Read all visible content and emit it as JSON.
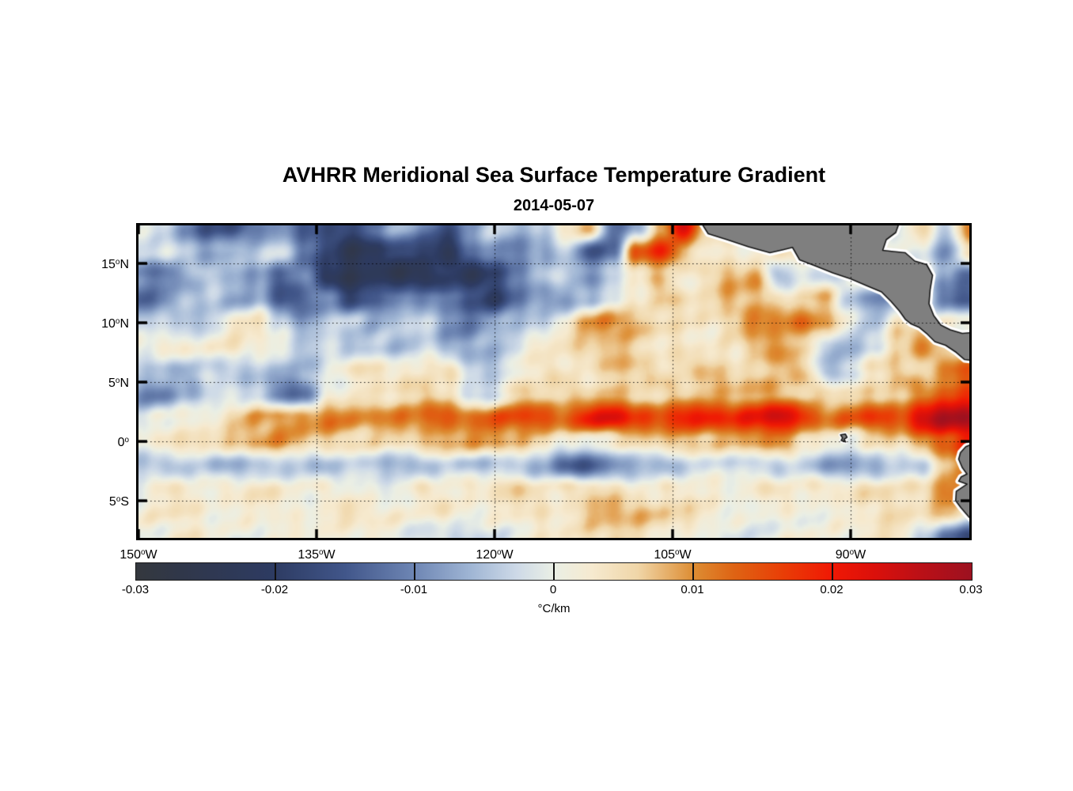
{
  "title": "AVHRR Meridional Sea Surface Temperature Gradient",
  "subtitle": "2014-05-07",
  "chart_data": {
    "type": "heatmap",
    "title": "AVHRR Meridional Sea Surface Temperature Gradient",
    "subtitle": "2014-05-07",
    "units": "°C/km",
    "extent": {
      "lon_min": -150,
      "lon_max": -80,
      "lat_min": -8.13,
      "lat_max": 18.2
    },
    "gridlines": {
      "lats": [
        15,
        10,
        5,
        0,
        -5
      ],
      "lons": [
        -135,
        -120,
        -105,
        -90
      ],
      "style": "dotted-black"
    },
    "y_ticks": [
      {
        "lat": 15,
        "num": "15",
        "sup": "o",
        "suffix": "N"
      },
      {
        "lat": 10,
        "num": "10",
        "sup": "o",
        "suffix": "N"
      },
      {
        "lat": 5,
        "num": "5",
        "sup": "o",
        "suffix": "N"
      },
      {
        "lat": 0,
        "num": "0",
        "sup": "o",
        "suffix": ""
      },
      {
        "lat": -5,
        "num": "5",
        "sup": "o",
        "suffix": "S"
      }
    ],
    "x_ticks": [
      {
        "lon": -150,
        "num": "150",
        "sup": "o",
        "suffix": "W"
      },
      {
        "lon": -135,
        "num": "135",
        "sup": "o",
        "suffix": "W"
      },
      {
        "lon": -120,
        "num": "120",
        "sup": "o",
        "suffix": "W"
      },
      {
        "lon": -105,
        "num": "105",
        "sup": "o",
        "suffix": "W"
      },
      {
        "lon": -90,
        "num": "90",
        "sup": "o",
        "suffix": "W"
      }
    ],
    "colorbar": {
      "min": -0.03,
      "max": 0.03,
      "unit": "°C/km",
      "tick_values": [
        -0.03,
        -0.02,
        -0.01,
        0,
        0.01,
        0.02,
        0.03
      ],
      "tick_labels": [
        "-0.03",
        "-0.02",
        "-0.01",
        "0",
        "0.01",
        "0.02",
        "0.03"
      ],
      "stops": [
        [
          0.0,
          "#34383e"
        ],
        [
          0.055,
          "#30374a"
        ],
        [
          0.165,
          "#2d3b62"
        ],
        [
          0.25,
          "#41568a"
        ],
        [
          0.333,
          "#6e86b4"
        ],
        [
          0.4,
          "#9fb5d4"
        ],
        [
          0.455,
          "#cdd9e7"
        ],
        [
          0.5,
          "#eaefe5"
        ],
        [
          0.545,
          "#f6ead0"
        ],
        [
          0.6,
          "#f0d6a8"
        ],
        [
          0.667,
          "#dd8d33"
        ],
        [
          0.715,
          "#de6414"
        ],
        [
          0.775,
          "#e93d06"
        ],
        [
          0.833,
          "#f01804"
        ],
        [
          0.885,
          "#da100b"
        ],
        [
          0.935,
          "#bd1016"
        ],
        [
          1.0,
          "#9c1120"
        ]
      ]
    },
    "grid": {
      "comment": "meridional SST gradient, milli-degC per km, rows north to south",
      "lon0": -150,
      "dlon": 2,
      "lat0": 18,
      "dlat": 2,
      "values_milli": [
        [
          -2,
          -4,
          -10,
          -16,
          -18,
          -12,
          -8,
          -14,
          -18,
          -16,
          -10,
          -6,
          -12,
          -16,
          -8,
          -4,
          -6,
          -2,
          4,
          8,
          -12,
          -8,
          6,
          22,
          6,
          5,
          4,
          3,
          2,
          2,
          2,
          0,
          -2,
          4,
          -4,
          14
        ],
        [
          -3,
          -2,
          -6,
          -8,
          -6,
          -4,
          -2,
          -10,
          -18,
          -24,
          -22,
          -16,
          -20,
          -22,
          -12,
          -8,
          -12,
          -8,
          -4,
          -16,
          -14,
          14,
          20,
          8,
          4,
          4,
          3,
          3,
          6,
          4,
          3,
          2,
          0,
          -2,
          -8,
          6
        ],
        [
          -10,
          -12,
          -8,
          -5,
          -4,
          -6,
          -14,
          -10,
          -20,
          -26,
          -24,
          -26,
          -22,
          -20,
          -24,
          -16,
          -10,
          -6,
          -4,
          -8,
          -4,
          2,
          8,
          4,
          4,
          8,
          10,
          -6,
          -4,
          -4,
          2,
          6,
          -3,
          4,
          -6,
          -14
        ],
        [
          -14,
          -12,
          -6,
          -4,
          -8,
          -6,
          -16,
          -12,
          -10,
          -18,
          -14,
          -8,
          -12,
          -10,
          -16,
          -20,
          -14,
          -8,
          -10,
          -6,
          -2,
          4,
          8,
          6,
          6,
          10,
          8,
          2,
          4,
          6,
          -6,
          -12,
          -6,
          2,
          -10,
          -14
        ],
        [
          -4,
          -3,
          -5,
          -2,
          3,
          4,
          -2,
          -8,
          -6,
          -4,
          -6,
          -4,
          -3,
          -8,
          -10,
          -6,
          -5,
          -3,
          2,
          8,
          10,
          8,
          4,
          3,
          5,
          8,
          12,
          10,
          14,
          8,
          -2,
          -6,
          6,
          3,
          2,
          3
        ],
        [
          1,
          2,
          0,
          2,
          3,
          2,
          0,
          -3,
          -2,
          -5,
          -4,
          -5,
          -3,
          -6,
          -7,
          -5,
          -2,
          3,
          4,
          5,
          6,
          5,
          4,
          4,
          4,
          5,
          10,
          9,
          6,
          -6,
          -8,
          -5,
          6,
          10,
          6,
          4
        ],
        [
          -3,
          -5,
          -8,
          -5,
          -3,
          -4,
          -6,
          -5,
          2,
          3,
          3,
          2,
          3,
          2,
          -4,
          -3,
          2,
          4,
          5,
          5,
          6,
          6,
          5,
          5,
          5,
          5,
          6,
          8,
          6,
          -4,
          -2,
          4,
          6,
          6,
          10,
          12
        ],
        [
          -8,
          -12,
          -8,
          -4,
          -3,
          -5,
          -12,
          -10,
          2,
          4,
          5,
          6,
          5,
          4,
          -5,
          -4,
          4,
          6,
          6,
          7,
          8,
          7,
          6,
          6,
          7,
          8,
          8,
          7,
          6,
          5,
          4,
          5,
          8,
          10,
          14,
          16
        ],
        [
          0,
          2,
          2,
          3,
          5,
          7,
          8,
          10,
          11,
          10,
          12,
          13,
          12,
          14,
          13,
          14,
          15,
          16,
          15,
          20,
          23,
          18,
          16,
          18,
          20,
          19,
          21,
          24,
          20,
          13,
          14,
          18,
          16,
          24,
          27,
          28
        ],
        [
          3,
          5,
          4,
          5,
          6,
          7,
          8,
          7,
          6,
          5,
          6,
          7,
          8,
          9,
          10,
          9,
          6,
          3,
          1,
          0,
          2,
          6,
          9,
          8,
          7,
          8,
          10,
          9,
          4,
          2,
          0,
          4,
          6,
          10,
          14,
          18
        ],
        [
          -3,
          -4,
          -4,
          -5,
          -5,
          -6,
          -5,
          -5,
          -4,
          -4,
          -5,
          -6,
          -5,
          -5,
          -5,
          -4,
          -5,
          -8,
          -12,
          -14,
          -10,
          -6,
          -5,
          -4,
          -4,
          -3,
          -4,
          -5,
          -4,
          -6,
          -7,
          -6,
          -3,
          -2,
          6,
          8
        ],
        [
          1,
          2,
          2,
          1,
          2,
          2,
          3,
          3,
          3,
          2,
          2,
          1,
          2,
          1,
          2,
          3,
          4,
          4,
          5,
          6,
          5,
          4,
          3,
          2,
          2,
          1,
          2,
          2,
          3,
          4,
          3,
          5,
          6,
          4,
          12,
          8
        ],
        [
          3,
          4,
          3,
          2,
          2,
          1,
          2,
          2,
          3,
          4,
          3,
          2,
          1,
          2,
          2,
          3,
          4,
          5,
          5,
          7,
          8,
          7,
          6,
          3,
          2,
          2,
          1,
          2,
          2,
          3,
          2,
          3,
          5,
          4,
          6,
          2
        ],
        [
          1,
          1,
          2,
          1,
          0,
          1,
          1,
          2,
          2,
          1,
          1,
          0,
          -2,
          -3,
          -2,
          0,
          1,
          2,
          3,
          4,
          4,
          3,
          2,
          1,
          1,
          0,
          1,
          1,
          2,
          1,
          1,
          2,
          2,
          -4,
          -12,
          -18
        ]
      ]
    },
    "land": {
      "fill": "#7f7f7f",
      "outline": "#161616",
      "fringe": "#ffffff",
      "polygons": [
        {
          "name": "central-america",
          "fringe_w": 8,
          "pts": [
            [
              -102.6,
              18.45
            ],
            [
              -102.0,
              17.5
            ],
            [
              -100.4,
              17.0
            ],
            [
              -98.6,
              16.4
            ],
            [
              -96.8,
              15.9
            ],
            [
              -95.7,
              16.15
            ],
            [
              -94.9,
              16.35
            ],
            [
              -94.3,
              15.3
            ],
            [
              -93.0,
              14.8
            ],
            [
              -91.5,
              14.2
            ],
            [
              -90.0,
              13.7
            ],
            [
              -88.6,
              13.1
            ],
            [
              -87.4,
              12.6
            ],
            [
              -86.6,
              11.8
            ],
            [
              -85.9,
              11.0
            ],
            [
              -85.4,
              10.3
            ],
            [
              -84.9,
              9.9
            ],
            [
              -84.2,
              9.6
            ],
            [
              -83.6,
              9.1
            ],
            [
              -82.9,
              8.4
            ],
            [
              -82.0,
              8.1
            ],
            [
              -81.1,
              7.5
            ],
            [
              -80.4,
              6.9
            ],
            [
              -79.5,
              6.8
            ],
            [
              -79.5,
              9.2
            ],
            [
              -80.6,
              9.1
            ],
            [
              -81.6,
              9.4
            ],
            [
              -82.4,
              9.8
            ],
            [
              -83.0,
              10.6
            ],
            [
              -83.4,
              11.6
            ],
            [
              -83.3,
              12.8
            ],
            [
              -83.1,
              14.0
            ],
            [
              -83.6,
              14.9
            ],
            [
              -84.6,
              15.2
            ],
            [
              -85.4,
              15.9
            ],
            [
              -86.4,
              16.0
            ],
            [
              -87.3,
              16.1
            ],
            [
              -87.0,
              17.0
            ],
            [
              -86.2,
              17.6
            ],
            [
              -85.9,
              18.45
            ]
          ]
        },
        {
          "name": "south-america",
          "fringe_w": 8,
          "pts": [
            [
              -79.5,
              -0.1
            ],
            [
              -80.3,
              -0.45
            ],
            [
              -80.75,
              -0.95
            ],
            [
              -80.9,
              -1.5
            ],
            [
              -80.6,
              -2.2
            ],
            [
              -80.2,
              -2.75
            ],
            [
              -80.7,
              -3.0
            ],
            [
              -80.9,
              -3.35
            ],
            [
              -80.2,
              -3.6
            ],
            [
              -81.1,
              -4.2
            ],
            [
              -81.15,
              -5.0
            ],
            [
              -80.7,
              -5.6
            ],
            [
              -80.1,
              -6.3
            ],
            [
              -79.5,
              -6.9
            ]
          ]
        },
        {
          "name": "galapagos",
          "fringe_w": 5,
          "pts": [
            [
              -90.85,
              0.55
            ],
            [
              -90.45,
              0.62
            ],
            [
              -90.3,
              0.35
            ],
            [
              -90.55,
              0.18
            ],
            [
              -90.42,
              -0.05
            ],
            [
              -90.8,
              0.08
            ],
            [
              -90.68,
              0.3
            ]
          ]
        }
      ]
    }
  }
}
